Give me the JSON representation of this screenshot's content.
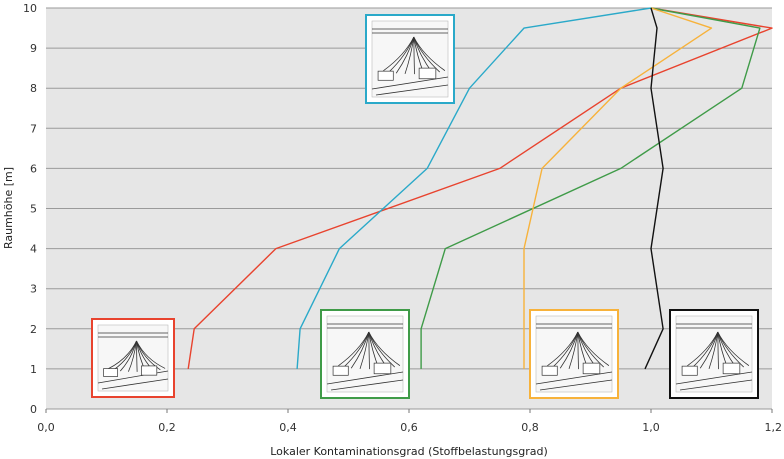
{
  "chart_data": {
    "type": "line",
    "title": "",
    "xlabel": "Lokaler Kontaminationsgrad (Stoffbelastungsgrad)",
    "ylabel": "Raumhöhe [m]",
    "xlim": [
      0,
      1.2
    ],
    "ylim": [
      0,
      10
    ],
    "x_ticks": [
      "0,0",
      "0,2",
      "0,4",
      "0,6",
      "0,8",
      "1,0",
      "1,2"
    ],
    "y_ticks": [
      "0",
      "1",
      "2",
      "3",
      "4",
      "5",
      "6",
      "7",
      "8",
      "9",
      "10"
    ],
    "grid": "horizontal",
    "background": "#e6e6e6",
    "series": [
      {
        "color": "#e8432e",
        "points": [
          [
            0.235,
            1
          ],
          [
            0.245,
            2
          ],
          [
            0.38,
            4
          ],
          [
            0.75,
            6
          ],
          [
            0.95,
            8
          ],
          [
            1.2,
            9.5
          ],
          [
            1.0,
            10
          ]
        ]
      },
      {
        "color": "#2aa9c9",
        "points": [
          [
            0.415,
            1
          ],
          [
            0.42,
            2
          ],
          [
            0.485,
            4
          ],
          [
            0.63,
            6
          ],
          [
            0.7,
            8
          ],
          [
            0.79,
            9.5
          ],
          [
            1.0,
            10
          ]
        ]
      },
      {
        "color": "#3f9b48",
        "points": [
          [
            0.62,
            1
          ],
          [
            0.62,
            2
          ],
          [
            0.66,
            4
          ],
          [
            0.95,
            6
          ],
          [
            1.15,
            8
          ],
          [
            1.18,
            9.5
          ],
          [
            1.0,
            10
          ]
        ]
      },
      {
        "color": "#f7b23b",
        "points": [
          [
            0.79,
            1
          ],
          [
            0.79,
            2
          ],
          [
            0.79,
            4
          ],
          [
            0.82,
            6
          ],
          [
            0.95,
            8
          ],
          [
            1.1,
            9.5
          ],
          [
            1.0,
            10
          ]
        ]
      },
      {
        "color": "#111111",
        "points": [
          [
            0.99,
            1
          ],
          [
            1.02,
            2
          ],
          [
            1.0,
            4
          ],
          [
            1.02,
            6
          ],
          [
            1.0,
            8
          ],
          [
            1.01,
            9.5
          ],
          [
            1.0,
            10
          ]
        ]
      }
    ]
  },
  "illustrations": [
    {
      "border": "#e8432e",
      "icon": "displacement-ventilation-illustration"
    },
    {
      "border": "#2aa9c9",
      "icon": "ceiling-diffuser-illustration"
    },
    {
      "border": "#3f9b48",
      "icon": "mixing-ventilation-illustration"
    },
    {
      "border": "#f7b23b",
      "icon": "local-extraction-illustration"
    },
    {
      "border": "#111111",
      "icon": "swirl-diffuser-illustration"
    }
  ]
}
